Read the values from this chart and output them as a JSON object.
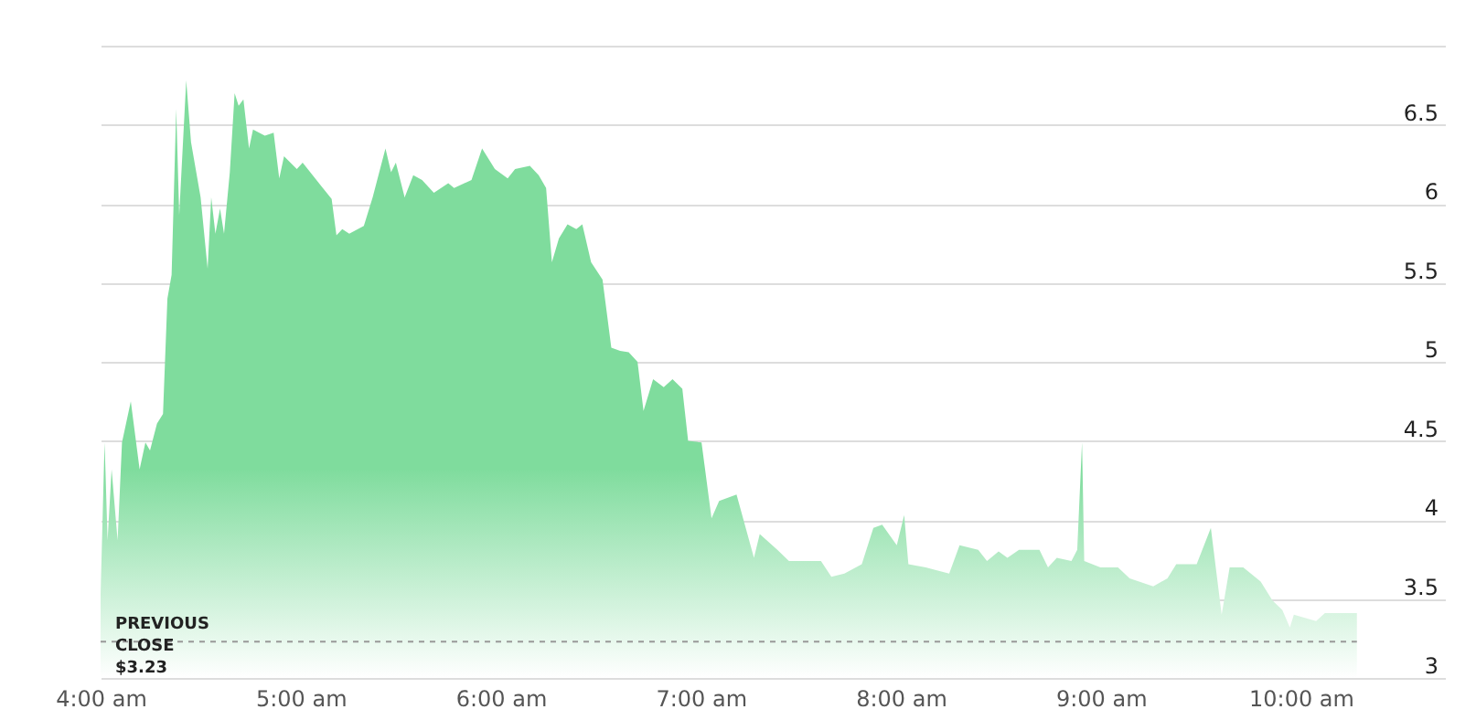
{
  "chart_data": {
    "type": "area",
    "x": [
      4.0,
      4.02,
      4.035,
      4.055,
      4.085,
      4.107,
      4.151,
      4.195,
      4.224,
      4.247,
      4.282,
      4.312,
      4.334,
      4.355,
      4.378,
      4.393,
      4.428,
      4.452,
      4.5,
      4.535,
      4.553,
      4.574,
      4.597,
      4.617,
      4.646,
      4.67,
      4.69,
      4.714,
      4.742,
      4.762,
      4.821,
      4.865,
      4.893,
      4.917,
      4.981,
      5.01,
      5.098,
      5.155,
      5.179,
      5.208,
      5.243,
      5.316,
      5.36,
      5.424,
      5.452,
      5.476,
      5.52,
      5.563,
      5.607,
      5.666,
      5.738,
      5.767,
      5.854,
      5.907,
      5.971,
      6.035,
      6.072,
      6.146,
      6.19,
      6.227,
      6.256,
      6.291,
      6.334,
      6.378,
      6.408,
      6.452,
      6.509,
      6.553,
      6.597,
      6.64,
      6.684,
      6.714,
      6.762,
      6.815,
      6.859,
      6.908,
      6.937,
      7.004,
      7.054,
      7.092,
      7.179,
      7.266,
      7.295,
      7.383,
      7.441,
      7.543,
      7.601,
      7.653,
      7.718,
      7.805,
      7.863,
      7.907,
      7.98,
      8.017,
      8.038,
      8.125,
      8.242,
      8.294,
      8.387,
      8.431,
      8.489,
      8.533,
      8.591,
      8.693,
      8.736,
      8.78,
      8.853,
      8.882,
      8.906,
      8.917,
      8.998,
      9.086,
      9.144,
      9.262,
      9.333,
      9.377,
      9.479,
      9.55,
      9.604,
      9.644,
      9.712,
      9.799,
      9.858,
      9.907,
      9.945,
      9.965,
      10.076,
      10.12,
      10.28
    ],
    "series": [
      {
        "color": "#7fdc9d",
        "values": [
          3.53,
          4.49,
          3.87,
          4.32,
          3.87,
          4.49,
          4.75,
          4.32,
          4.49,
          4.44,
          4.61,
          4.67,
          5.4,
          5.55,
          6.6,
          5.93,
          6.78,
          6.39,
          6.04,
          5.59,
          6.04,
          5.81,
          5.97,
          5.81,
          6.2,
          6.7,
          6.62,
          6.66,
          6.35,
          6.47,
          6.43,
          6.45,
          6.16,
          6.3,
          6.22,
          6.26,
          6.12,
          6.03,
          5.8,
          5.84,
          5.81,
          5.86,
          6.04,
          6.35,
          6.2,
          6.26,
          6.04,
          6.18,
          6.15,
          6.07,
          6.13,
          6.1,
          6.15,
          6.35,
          6.22,
          6.16,
          6.22,
          6.24,
          6.18,
          6.1,
          5.63,
          5.78,
          5.87,
          5.84,
          5.87,
          5.63,
          5.52,
          5.09,
          5.07,
          5.06,
          5.0,
          4.69,
          4.89,
          4.84,
          4.89,
          4.83,
          4.5,
          4.49,
          4.01,
          4.12,
          4.16,
          3.76,
          3.91,
          3.81,
          3.74,
          3.74,
          3.74,
          3.64,
          3.66,
          3.72,
          3.95,
          3.97,
          3.84,
          4.03,
          3.72,
          3.7,
          3.66,
          3.84,
          3.81,
          3.74,
          3.8,
          3.76,
          3.81,
          3.81,
          3.7,
          3.76,
          3.74,
          3.81,
          4.49,
          3.74,
          3.7,
          3.7,
          3.63,
          3.58,
          3.63,
          3.72,
          3.72,
          3.95,
          3.4,
          3.7,
          3.7,
          3.61,
          3.49,
          3.43,
          3.32,
          3.4,
          3.36,
          3.41,
          3.41
        ]
      }
    ],
    "xlim": [
      4,
      10.72
    ],
    "xticks": [
      {
        "value": 4,
        "label": "4:00 am"
      },
      {
        "value": 5,
        "label": "5:00 am"
      },
      {
        "value": 6,
        "label": "6:00 am"
      },
      {
        "value": 7,
        "label": "7:00 am"
      },
      {
        "value": 8,
        "label": "8:00 am"
      },
      {
        "value": 9,
        "label": "9:00 am"
      },
      {
        "value": 10,
        "label": "10:00 am"
      }
    ],
    "ylim": [
      3,
      7
    ],
    "yticks": [
      3,
      3.5,
      4,
      4.5,
      5,
      5.5,
      6,
      6.5,
      {
        "value": 7,
        "label": null
      }
    ],
    "grid": "y",
    "ref_lines": [
      {
        "axis": "y",
        "value": 3.23,
        "label": "PREVIOUS CLOSE $3.23",
        "line_style": "dashed",
        "color": "#999999"
      }
    ]
  }
}
